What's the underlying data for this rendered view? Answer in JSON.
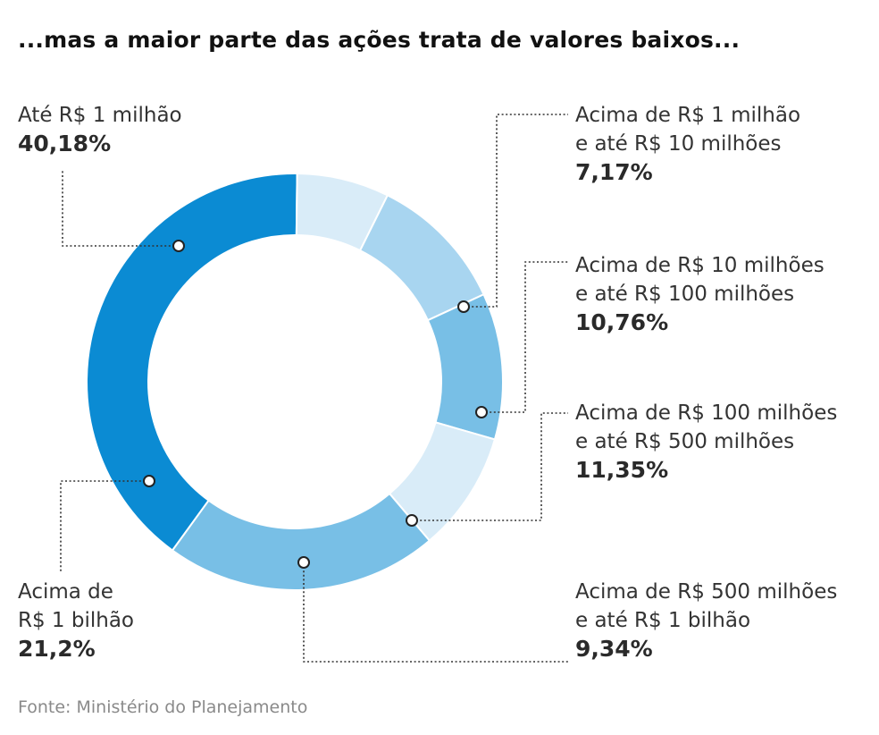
{
  "title": "...mas a maior parte das ações trata de valores baixos...",
  "source": "Fonte: Ministério do Planejamento",
  "chart_data": {
    "type": "pie",
    "donut": true,
    "slices": [
      {
        "lines": [
          "Até R$ 1 milhão"
        ],
        "value_label": "40,18%",
        "value": 40.18,
        "color": "#0b8bd3"
      },
      {
        "lines": [
          "Acima de R$ 1 milhão",
          "e até R$ 10 milhões"
        ],
        "value_label": "7,17%",
        "value": 7.17,
        "color": "#d9ecf8"
      },
      {
        "lines": [
          "Acima de R$ 10 milhões",
          "e até R$ 100 milhões"
        ],
        "value_label": "10,76%",
        "value": 10.76,
        "color": "#a8d5f0"
      },
      {
        "lines": [
          "Acima de R$ 100 milhões",
          "e até R$ 500 milhões"
        ],
        "value_label": "11,35%",
        "value": 11.35,
        "color": "#78bfe6"
      },
      {
        "lines": [
          "Acima de R$ 500 milhões",
          "e até R$ 1 bilhão"
        ],
        "value_label": "9,34%",
        "value": 9.34,
        "color": "#d9ecf8"
      },
      {
        "lines": [
          "Acima de",
          "R$ 1 bilhão"
        ],
        "value_label": "21,2%",
        "value": 21.2,
        "color": "#78bfe6"
      }
    ]
  }
}
